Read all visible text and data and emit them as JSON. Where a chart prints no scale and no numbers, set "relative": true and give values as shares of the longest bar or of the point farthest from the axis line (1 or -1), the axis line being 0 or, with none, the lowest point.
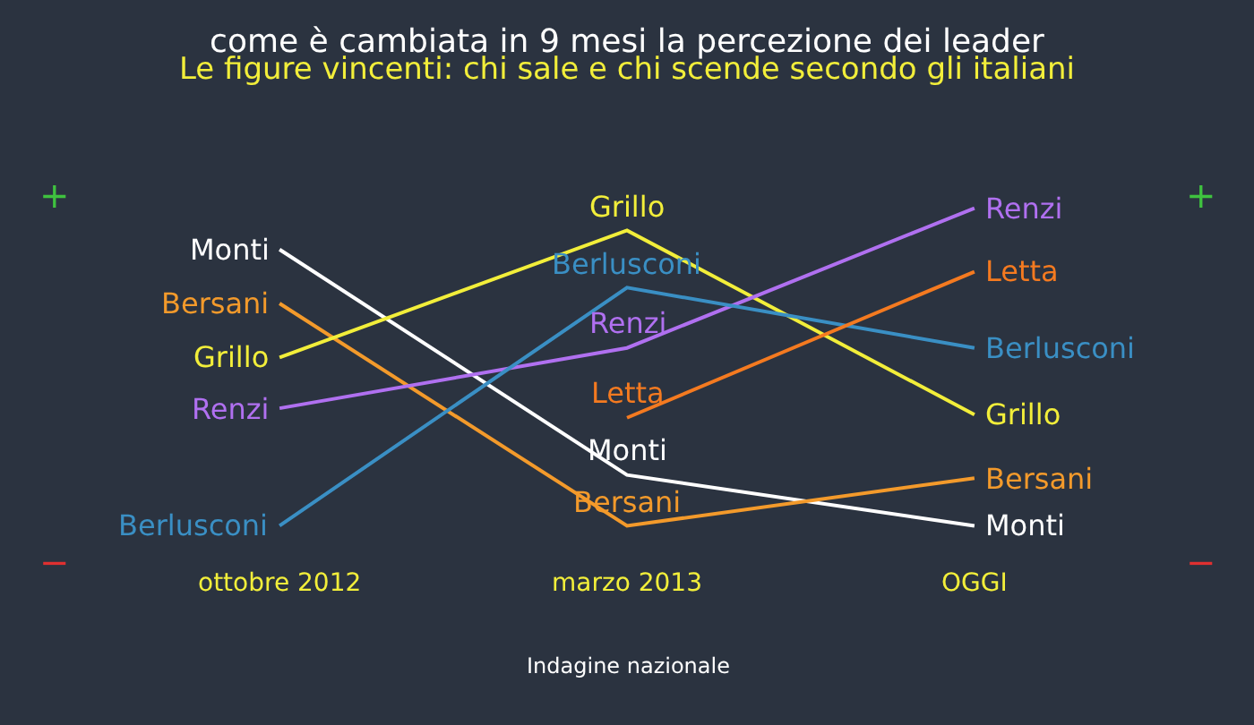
{
  "chart_data": {
    "type": "line",
    "title": "come è cambiata in 9 mesi la percezione dei leader",
    "subtitle": "Le figure vincenti: chi sale e chi scende secondo gli italiani",
    "categories": [
      "ottobre 2012",
      "marzo 2013",
      "OGGI"
    ],
    "relative": true,
    "legend": false,
    "line_style": "solid",
    "series": [
      {
        "name": "Monti",
        "color": "#ffffff",
        "values": [
          0.87,
          0.16,
          0
        ]
      },
      {
        "name": "Bersani",
        "color": "#f39a2b",
        "values": [
          0.7,
          0,
          0.15
        ]
      },
      {
        "name": "Grillo",
        "color": "#f2ee3a",
        "values": [
          0.53,
          0.93,
          0.35
        ]
      },
      {
        "name": "Renzi",
        "color": "#b070f0",
        "values": [
          0.37,
          0.56,
          1
        ]
      },
      {
        "name": "Berlusconi",
        "color": "#3a8fc4",
        "values": [
          0,
          0.75,
          0.56
        ]
      },
      {
        "name": "Letta",
        "color": "#f47a20",
        "values": [
          null,
          0.34,
          0.8
        ]
      }
    ],
    "annotations": [
      "+",
      "−",
      "+",
      "−",
      "Indagine nazionale"
    ]
  }
}
